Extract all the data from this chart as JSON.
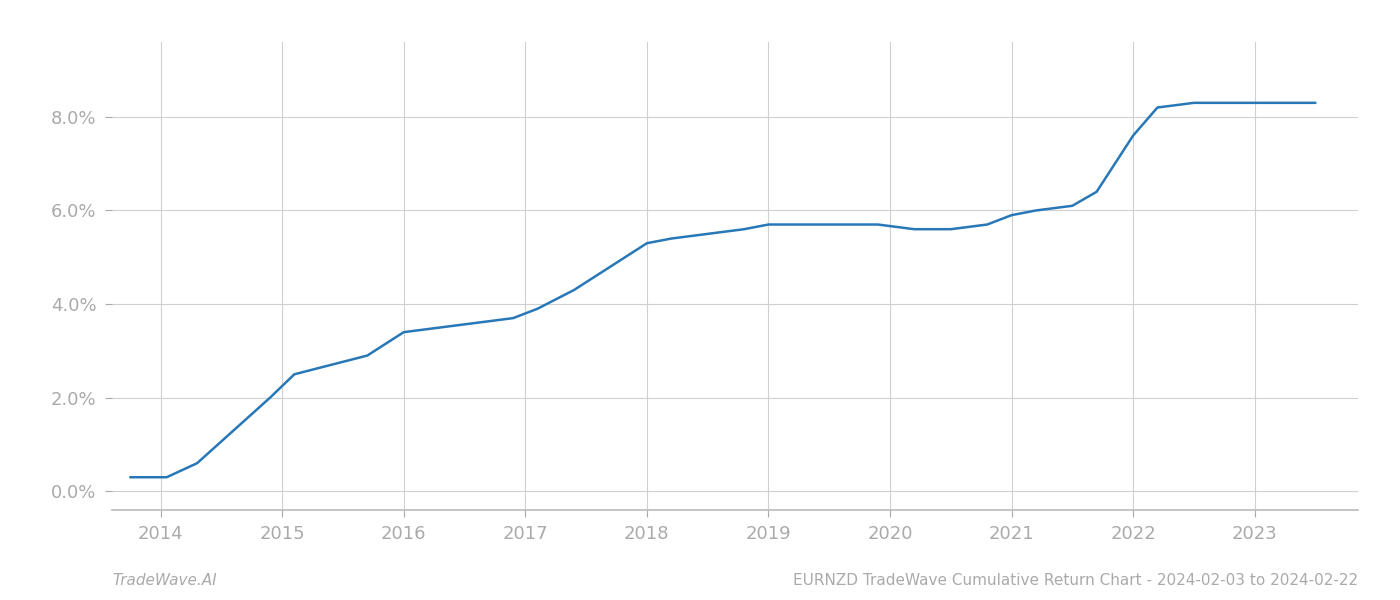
{
  "x_years": [
    2013.75,
    2014.05,
    2014.3,
    2014.6,
    2014.9,
    2015.1,
    2015.4,
    2015.7,
    2016.0,
    2016.3,
    2016.6,
    2016.9,
    2017.1,
    2017.4,
    2017.7,
    2018.0,
    2018.2,
    2018.5,
    2018.8,
    2019.0,
    2019.3,
    2019.6,
    2019.9,
    2020.2,
    2020.5,
    2020.8,
    2021.0,
    2021.2,
    2021.5,
    2021.7,
    2021.85,
    2022.0,
    2022.2,
    2022.5,
    2022.8,
    2023.0,
    2023.5
  ],
  "y_values": [
    0.003,
    0.003,
    0.006,
    0.013,
    0.02,
    0.025,
    0.027,
    0.029,
    0.034,
    0.035,
    0.036,
    0.037,
    0.039,
    0.043,
    0.048,
    0.053,
    0.054,
    0.055,
    0.056,
    0.057,
    0.057,
    0.057,
    0.057,
    0.056,
    0.056,
    0.057,
    0.059,
    0.06,
    0.061,
    0.064,
    0.07,
    0.076,
    0.082,
    0.083,
    0.083,
    0.083,
    0.083
  ],
  "line_color": "#2878b8",
  "line_width": 1.8,
  "background_color": "#ffffff",
  "grid_color": "#d0d0d0",
  "tick_color": "#aaaaaa",
  "footer_left": "TradeWave.AI",
  "footer_right": "EURNZD TradeWave Cumulative Return Chart - 2024-02-03 to 2024-02-22",
  "x_ticks": [
    2014,
    2015,
    2016,
    2017,
    2018,
    2019,
    2020,
    2021,
    2022,
    2023
  ],
  "y_ticks": [
    0.0,
    0.02,
    0.04,
    0.06,
    0.08
  ],
  "y_tick_labels": [
    "0.0%",
    "2.0%",
    "4.0%",
    "6.0%",
    "8.0%"
  ],
  "xlim": [
    2013.6,
    2023.85
  ],
  "ylim": [
    -0.004,
    0.096
  ]
}
